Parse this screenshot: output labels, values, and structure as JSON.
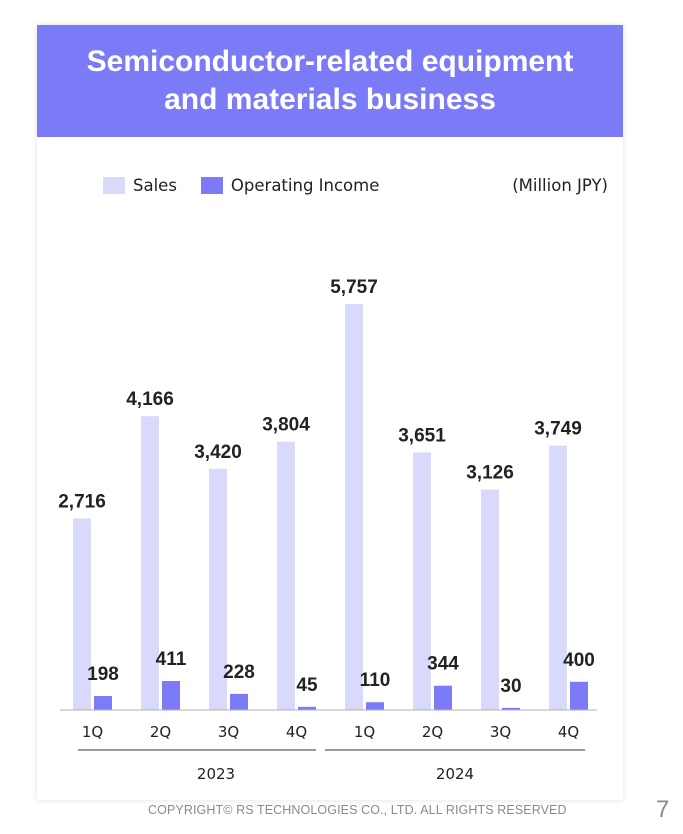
{
  "slide": {
    "title_line1": "Semiconductor-related equipment",
    "title_line2": "and materials business",
    "copyright": "COPYRIGHT© RS TECHNOLOGIES CO., LTD. ALL RIGHTS RESERVED",
    "page_number": "7"
  },
  "chart_data": {
    "type": "bar",
    "units": "(Million JPY)",
    "categories": [
      "1Q",
      "2Q",
      "3Q",
      "4Q",
      "1Q",
      "2Q",
      "3Q",
      "4Q"
    ],
    "groups": [
      {
        "label": "2023",
        "categories": [
          "1Q",
          "2Q",
          "3Q",
          "4Q"
        ]
      },
      {
        "label": "2024",
        "categories": [
          "1Q",
          "2Q",
          "3Q",
          "4Q"
        ]
      }
    ],
    "series": [
      {
        "name": "Sales",
        "color": "#d9d9fb",
        "values": [
          2716,
          4166,
          3420,
          3804,
          5757,
          3651,
          3126,
          3749
        ]
      },
      {
        "name": "Operating Income",
        "color": "#7b7bf7",
        "values": [
          198,
          411,
          228,
          45,
          110,
          344,
          30,
          400
        ]
      }
    ],
    "ylim": [
      0,
      5757
    ],
    "grid": false,
    "legend_position": "top-left"
  }
}
